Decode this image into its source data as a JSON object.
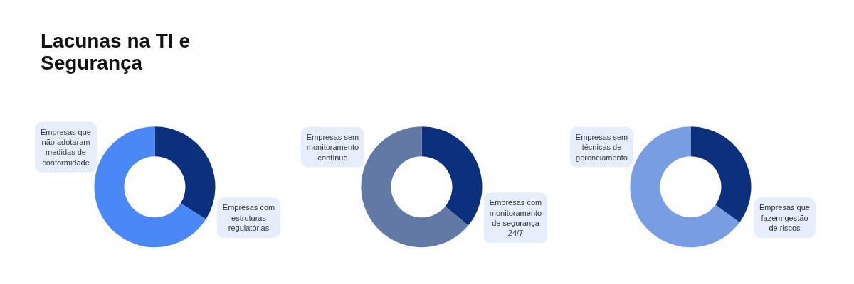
{
  "chart_data": [
    {
      "type": "donut",
      "title": "Lacunas na TI e Segurança",
      "categories": [
        "Empresas com estruturas regulatórias",
        "Empresas que não adotaram medidas de conformidade"
      ],
      "values": [
        34,
        66
      ],
      "colors": [
        "#0d307e",
        "#4a87f7"
      ]
    },
    {
      "type": "donut",
      "categories": [
        "Empresas com monitoramento de segurança 24/7",
        "Empresas sem monitoramento contínuo"
      ],
      "values": [
        36,
        64
      ],
      "colors": [
        "#0d307e",
        "#6279a6"
      ]
    },
    {
      "type": "donut",
      "categories": [
        "Empresas que fazem gestão de riscos",
        "Empresas sem técnicas de gerenciamento"
      ],
      "values": [
        35,
        65
      ],
      "colors": [
        "#0d307e",
        "#789de2"
      ]
    }
  ]
}
